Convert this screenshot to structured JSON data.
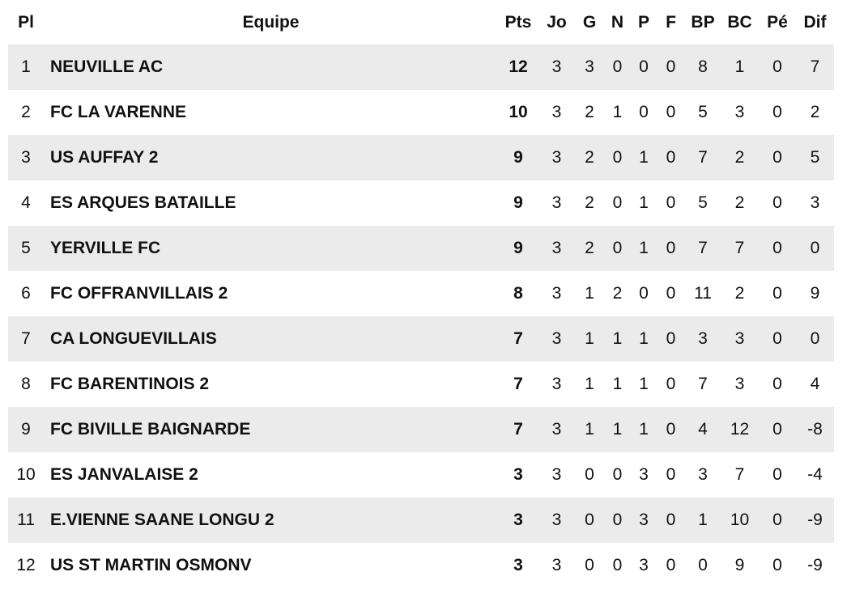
{
  "table": {
    "headers": [
      "Pl",
      "Equipe",
      "Pts",
      "Jo",
      "G",
      "N",
      "P",
      "F",
      "BP",
      "BC",
      "Pé",
      "Dif"
    ],
    "rows": [
      [
        "1",
        "NEUVILLE AC",
        "12",
        "3",
        "3",
        "0",
        "0",
        "0",
        "8",
        "1",
        "0",
        "7"
      ],
      [
        "2",
        "FC LA VARENNE",
        "10",
        "3",
        "2",
        "1",
        "0",
        "0",
        "5",
        "3",
        "0",
        "2"
      ],
      [
        "3",
        "US AUFFAY 2",
        "9",
        "3",
        "2",
        "0",
        "1",
        "0",
        "7",
        "2",
        "0",
        "5"
      ],
      [
        "4",
        "ES ARQUES BATAILLE",
        "9",
        "3",
        "2",
        "0",
        "1",
        "0",
        "5",
        "2",
        "0",
        "3"
      ],
      [
        "5",
        "YERVILLE FC",
        "9",
        "3",
        "2",
        "0",
        "1",
        "0",
        "7",
        "7",
        "0",
        "0"
      ],
      [
        "6",
        "FC OFFRANVILLAIS 2",
        "8",
        "3",
        "1",
        "2",
        "0",
        "0",
        "11",
        "2",
        "0",
        "9"
      ],
      [
        "7",
        "CA LONGUEVILLAIS",
        "7",
        "3",
        "1",
        "1",
        "1",
        "0",
        "3",
        "3",
        "0",
        "0"
      ],
      [
        "8",
        "FC BARENTINOIS 2",
        "7",
        "3",
        "1",
        "1",
        "1",
        "0",
        "7",
        "3",
        "0",
        "4"
      ],
      [
        "9",
        "FC BIVILLE BAIGNARDE",
        "7",
        "3",
        "1",
        "1",
        "1",
        "0",
        "4",
        "12",
        "0",
        "-8"
      ],
      [
        "10",
        "ES JANVALAISE 2",
        "3",
        "3",
        "0",
        "0",
        "3",
        "0",
        "3",
        "7",
        "0",
        "-4"
      ],
      [
        "11",
        "E.VIENNE SAANE LONGU 2",
        "3",
        "3",
        "0",
        "0",
        "3",
        "0",
        "1",
        "10",
        "0",
        "-9"
      ],
      [
        "12",
        "US ST MARTIN OSMONV",
        "3",
        "3",
        "0",
        "0",
        "3",
        "0",
        "0",
        "9",
        "0",
        "-9"
      ]
    ]
  }
}
